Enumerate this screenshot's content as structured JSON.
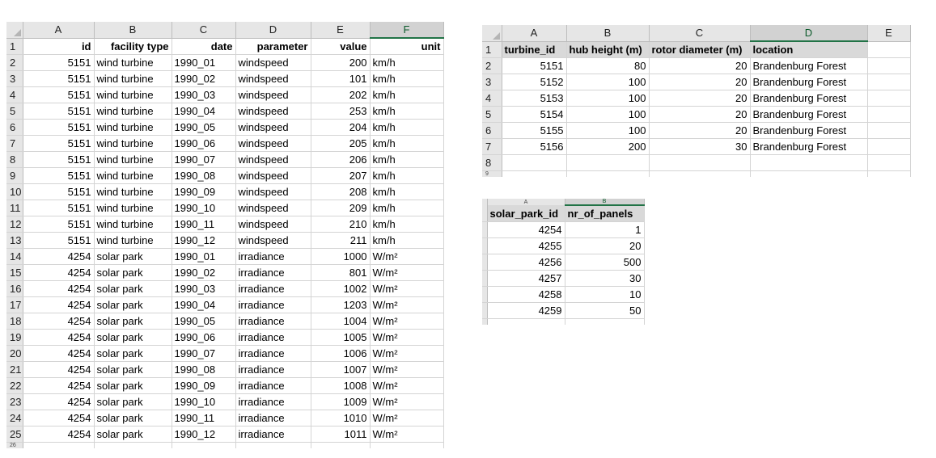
{
  "sheet1": {
    "col_letters": [
      "A",
      "B",
      "C",
      "D",
      "E",
      "F"
    ],
    "headers": [
      "id",
      "facility type",
      "date",
      "parameter",
      "value",
      "unit"
    ],
    "rows": [
      [
        "5151",
        "wind turbine",
        "1990_01",
        "windspeed",
        "200",
        "km/h"
      ],
      [
        "5151",
        "wind turbine",
        "1990_02",
        "windspeed",
        "101",
        "km/h"
      ],
      [
        "5151",
        "wind turbine",
        "1990_03",
        "windspeed",
        "202",
        "km/h"
      ],
      [
        "5151",
        "wind turbine",
        "1990_04",
        "windspeed",
        "253",
        "km/h"
      ],
      [
        "5151",
        "wind turbine",
        "1990_05",
        "windspeed",
        "204",
        "km/h"
      ],
      [
        "5151",
        "wind turbine",
        "1990_06",
        "windspeed",
        "205",
        "km/h"
      ],
      [
        "5151",
        "wind turbine",
        "1990_07",
        "windspeed",
        "206",
        "km/h"
      ],
      [
        "5151",
        "wind turbine",
        "1990_08",
        "windspeed",
        "207",
        "km/h"
      ],
      [
        "5151",
        "wind turbine",
        "1990_09",
        "windspeed",
        "208",
        "km/h"
      ],
      [
        "5151",
        "wind turbine",
        "1990_10",
        "windspeed",
        "209",
        "km/h"
      ],
      [
        "5151",
        "wind turbine",
        "1990_11",
        "windspeed",
        "210",
        "km/h"
      ],
      [
        "5151",
        "wind turbine",
        "1990_12",
        "windspeed",
        "211",
        "km/h"
      ],
      [
        "4254",
        "solar park",
        "1990_01",
        "irradiance",
        "1000",
        "W/m²"
      ],
      [
        "4254",
        "solar park",
        "1990_02",
        "irradiance",
        "801",
        "W/m²"
      ],
      [
        "4254",
        "solar park",
        "1990_03",
        "irradiance",
        "1002",
        "W/m²"
      ],
      [
        "4254",
        "solar park",
        "1990_04",
        "irradiance",
        "1203",
        "W/m²"
      ],
      [
        "4254",
        "solar park",
        "1990_05",
        "irradiance",
        "1004",
        "W/m²"
      ],
      [
        "4254",
        "solar park",
        "1990_06",
        "irradiance",
        "1005",
        "W/m²"
      ],
      [
        "4254",
        "solar park",
        "1990_07",
        "irradiance",
        "1006",
        "W/m²"
      ],
      [
        "4254",
        "solar park",
        "1990_08",
        "irradiance",
        "1007",
        "W/m²"
      ],
      [
        "4254",
        "solar park",
        "1990_09",
        "irradiance",
        "1008",
        "W/m²"
      ],
      [
        "4254",
        "solar park",
        "1990_10",
        "irradiance",
        "1009",
        "W/m²"
      ],
      [
        "4254",
        "solar park",
        "1990_11",
        "irradiance",
        "1010",
        "W/m²"
      ],
      [
        "4254",
        "solar park",
        "1990_12",
        "irradiance",
        "1011",
        "W/m²"
      ]
    ],
    "selected_col": "F",
    "cut_row": "26"
  },
  "sheet2": {
    "col_letters": [
      "A",
      "B",
      "C",
      "D",
      "E"
    ],
    "headers": [
      "turbine_id",
      "hub height (m)",
      "rotor diameter (m)",
      "location"
    ],
    "rows": [
      [
        "5151",
        "80",
        "20",
        "Brandenburg Forest"
      ],
      [
        "5152",
        "100",
        "20",
        "Brandenburg Forest"
      ],
      [
        "5153",
        "100",
        "20",
        "Brandenburg Forest"
      ],
      [
        "5154",
        "100",
        "20",
        "Brandenburg Forest"
      ],
      [
        "5155",
        "100",
        "20",
        "Brandenburg Forest"
      ],
      [
        "5156",
        "200",
        "30",
        "Brandenburg Forest"
      ]
    ],
    "empty_row": "8",
    "selected_col": "D",
    "cut_row": "9"
  },
  "sheet3": {
    "col_letters": [
      "A",
      "B"
    ],
    "headers": [
      "solar_park_id",
      "nr_of_panels"
    ],
    "rows": [
      [
        "4254",
        "1"
      ],
      [
        "4255",
        "20"
      ],
      [
        "4256",
        "500"
      ],
      [
        "4257",
        "30"
      ],
      [
        "4258",
        "10"
      ],
      [
        "4259",
        "50"
      ]
    ],
    "selected_col": "B"
  },
  "colors": {
    "selection_accent": "#217346",
    "header_bg": "#e6e6e6",
    "shade": "#d9d9d9",
    "gridline": "#d4d4d4"
  }
}
